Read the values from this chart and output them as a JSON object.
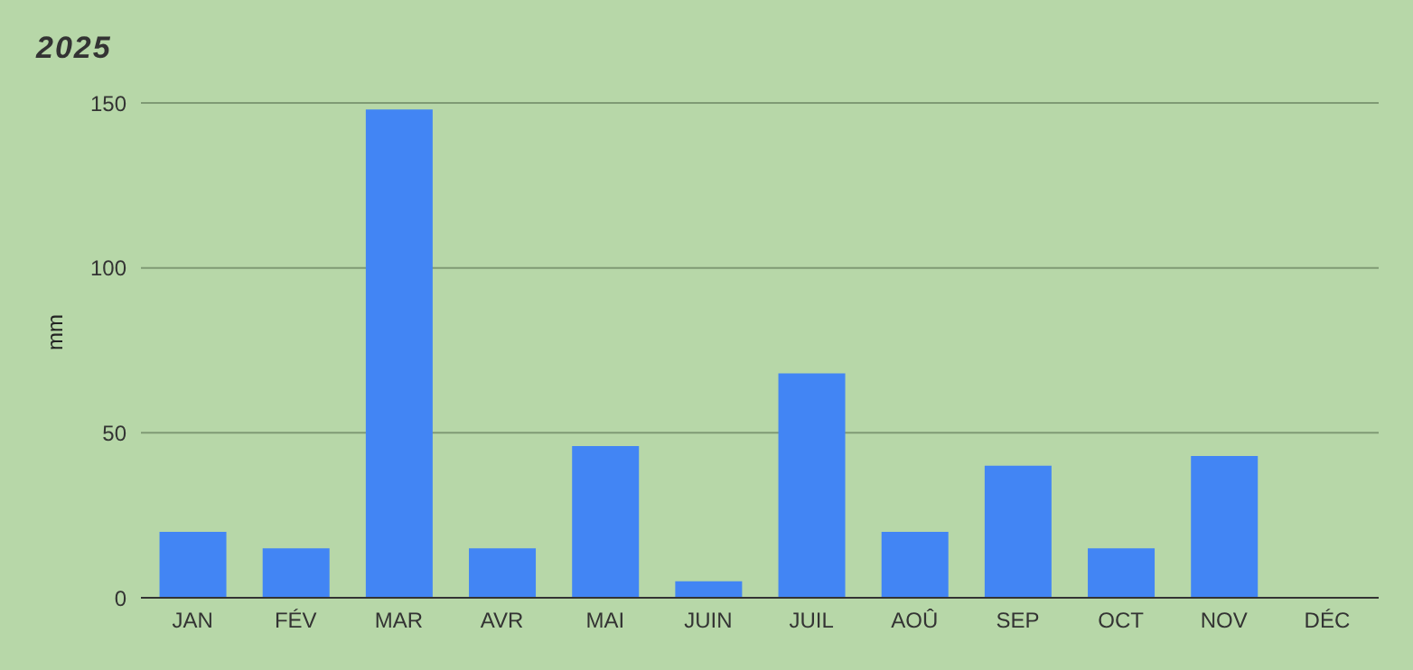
{
  "chart_data": {
    "type": "bar",
    "title": "2025",
    "ylabel": "mm",
    "categories": [
      "JAN",
      "FÉV",
      "MAR",
      "AVR",
      "MAI",
      "JUIN",
      "JUIL",
      "AOÛ",
      "SEP",
      "OCT",
      "NOV",
      "DÉC"
    ],
    "values": [
      20,
      15,
      148,
      15,
      46,
      5,
      68,
      20,
      40,
      15,
      43,
      0
    ],
    "color": "#4285f4",
    "ylim": [
      0,
      150
    ],
    "yticks": [
      0,
      50,
      100,
      150
    ],
    "grid": "y"
  }
}
